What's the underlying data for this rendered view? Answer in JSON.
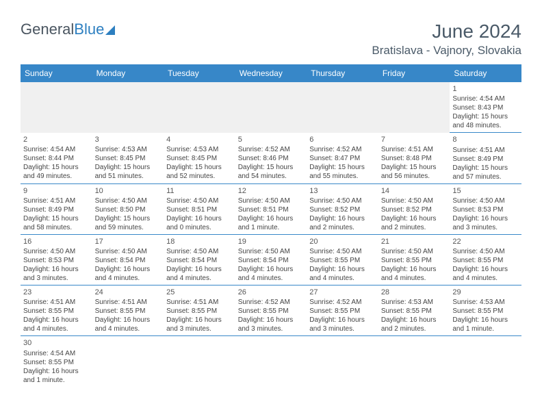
{
  "logo": {
    "general": "General",
    "blue": "Blue"
  },
  "header": {
    "month_title": "June 2024",
    "location": "Bratislava - Vajnory, Slovakia"
  },
  "colors": {
    "header_bg": "#3787c8",
    "header_text": "#ffffff",
    "border": "#3787c8",
    "logo_general": "#4a5560",
    "logo_blue": "#2d7fc0",
    "title_color": "#4a5a68",
    "text_color": "#444444",
    "filler_bg": "#f0f0f0"
  },
  "weekdays": [
    "Sunday",
    "Monday",
    "Tuesday",
    "Wednesday",
    "Thursday",
    "Friday",
    "Saturday"
  ],
  "weeks": [
    [
      {
        "filler": true
      },
      {
        "filler": true
      },
      {
        "filler": true
      },
      {
        "filler": true
      },
      {
        "filler": true
      },
      {
        "filler": true
      },
      {
        "day": "1",
        "sunrise": "Sunrise: 4:54 AM",
        "sunset": "Sunset: 8:43 PM",
        "daylight": "Daylight: 15 hours and 48 minutes."
      }
    ],
    [
      {
        "day": "2",
        "sunrise": "Sunrise: 4:54 AM",
        "sunset": "Sunset: 8:44 PM",
        "daylight": "Daylight: 15 hours and 49 minutes."
      },
      {
        "day": "3",
        "sunrise": "Sunrise: 4:53 AM",
        "sunset": "Sunset: 8:45 PM",
        "daylight": "Daylight: 15 hours and 51 minutes."
      },
      {
        "day": "4",
        "sunrise": "Sunrise: 4:53 AM",
        "sunset": "Sunset: 8:45 PM",
        "daylight": "Daylight: 15 hours and 52 minutes."
      },
      {
        "day": "5",
        "sunrise": "Sunrise: 4:52 AM",
        "sunset": "Sunset: 8:46 PM",
        "daylight": "Daylight: 15 hours and 54 minutes."
      },
      {
        "day": "6",
        "sunrise": "Sunrise: 4:52 AM",
        "sunset": "Sunset: 8:47 PM",
        "daylight": "Daylight: 15 hours and 55 minutes."
      },
      {
        "day": "7",
        "sunrise": "Sunrise: 4:51 AM",
        "sunset": "Sunset: 8:48 PM",
        "daylight": "Daylight: 15 hours and 56 minutes."
      },
      {
        "day": "8",
        "sunrise": "Sunrise: 4:51 AM",
        "sunset": "Sunset: 8:49 PM",
        "daylight": "Daylight: 15 hours and 57 minutes."
      }
    ],
    [
      {
        "day": "9",
        "sunrise": "Sunrise: 4:51 AM",
        "sunset": "Sunset: 8:49 PM",
        "daylight": "Daylight: 15 hours and 58 minutes."
      },
      {
        "day": "10",
        "sunrise": "Sunrise: 4:50 AM",
        "sunset": "Sunset: 8:50 PM",
        "daylight": "Daylight: 15 hours and 59 minutes."
      },
      {
        "day": "11",
        "sunrise": "Sunrise: 4:50 AM",
        "sunset": "Sunset: 8:51 PM",
        "daylight": "Daylight: 16 hours and 0 minutes."
      },
      {
        "day": "12",
        "sunrise": "Sunrise: 4:50 AM",
        "sunset": "Sunset: 8:51 PM",
        "daylight": "Daylight: 16 hours and 1 minute."
      },
      {
        "day": "13",
        "sunrise": "Sunrise: 4:50 AM",
        "sunset": "Sunset: 8:52 PM",
        "daylight": "Daylight: 16 hours and 2 minutes."
      },
      {
        "day": "14",
        "sunrise": "Sunrise: 4:50 AM",
        "sunset": "Sunset: 8:52 PM",
        "daylight": "Daylight: 16 hours and 2 minutes."
      },
      {
        "day": "15",
        "sunrise": "Sunrise: 4:50 AM",
        "sunset": "Sunset: 8:53 PM",
        "daylight": "Daylight: 16 hours and 3 minutes."
      }
    ],
    [
      {
        "day": "16",
        "sunrise": "Sunrise: 4:50 AM",
        "sunset": "Sunset: 8:53 PM",
        "daylight": "Daylight: 16 hours and 3 minutes."
      },
      {
        "day": "17",
        "sunrise": "Sunrise: 4:50 AM",
        "sunset": "Sunset: 8:54 PM",
        "daylight": "Daylight: 16 hours and 4 minutes."
      },
      {
        "day": "18",
        "sunrise": "Sunrise: 4:50 AM",
        "sunset": "Sunset: 8:54 PM",
        "daylight": "Daylight: 16 hours and 4 minutes."
      },
      {
        "day": "19",
        "sunrise": "Sunrise: 4:50 AM",
        "sunset": "Sunset: 8:54 PM",
        "daylight": "Daylight: 16 hours and 4 minutes."
      },
      {
        "day": "20",
        "sunrise": "Sunrise: 4:50 AM",
        "sunset": "Sunset: 8:55 PM",
        "daylight": "Daylight: 16 hours and 4 minutes."
      },
      {
        "day": "21",
        "sunrise": "Sunrise: 4:50 AM",
        "sunset": "Sunset: 8:55 PM",
        "daylight": "Daylight: 16 hours and 4 minutes."
      },
      {
        "day": "22",
        "sunrise": "Sunrise: 4:50 AM",
        "sunset": "Sunset: 8:55 PM",
        "daylight": "Daylight: 16 hours and 4 minutes."
      }
    ],
    [
      {
        "day": "23",
        "sunrise": "Sunrise: 4:51 AM",
        "sunset": "Sunset: 8:55 PM",
        "daylight": "Daylight: 16 hours and 4 minutes."
      },
      {
        "day": "24",
        "sunrise": "Sunrise: 4:51 AM",
        "sunset": "Sunset: 8:55 PM",
        "daylight": "Daylight: 16 hours and 4 minutes."
      },
      {
        "day": "25",
        "sunrise": "Sunrise: 4:51 AM",
        "sunset": "Sunset: 8:55 PM",
        "daylight": "Daylight: 16 hours and 3 minutes."
      },
      {
        "day": "26",
        "sunrise": "Sunrise: 4:52 AM",
        "sunset": "Sunset: 8:55 PM",
        "daylight": "Daylight: 16 hours and 3 minutes."
      },
      {
        "day": "27",
        "sunrise": "Sunrise: 4:52 AM",
        "sunset": "Sunset: 8:55 PM",
        "daylight": "Daylight: 16 hours and 3 minutes."
      },
      {
        "day": "28",
        "sunrise": "Sunrise: 4:53 AM",
        "sunset": "Sunset: 8:55 PM",
        "daylight": "Daylight: 16 hours and 2 minutes."
      },
      {
        "day": "29",
        "sunrise": "Sunrise: 4:53 AM",
        "sunset": "Sunset: 8:55 PM",
        "daylight": "Daylight: 16 hours and 1 minute."
      }
    ],
    [
      {
        "day": "30",
        "sunrise": "Sunrise: 4:54 AM",
        "sunset": "Sunset: 8:55 PM",
        "daylight": "Daylight: 16 hours and 1 minute."
      },
      {
        "empty": true
      },
      {
        "empty": true
      },
      {
        "empty": true
      },
      {
        "empty": true
      },
      {
        "empty": true
      },
      {
        "empty": true
      }
    ]
  ]
}
